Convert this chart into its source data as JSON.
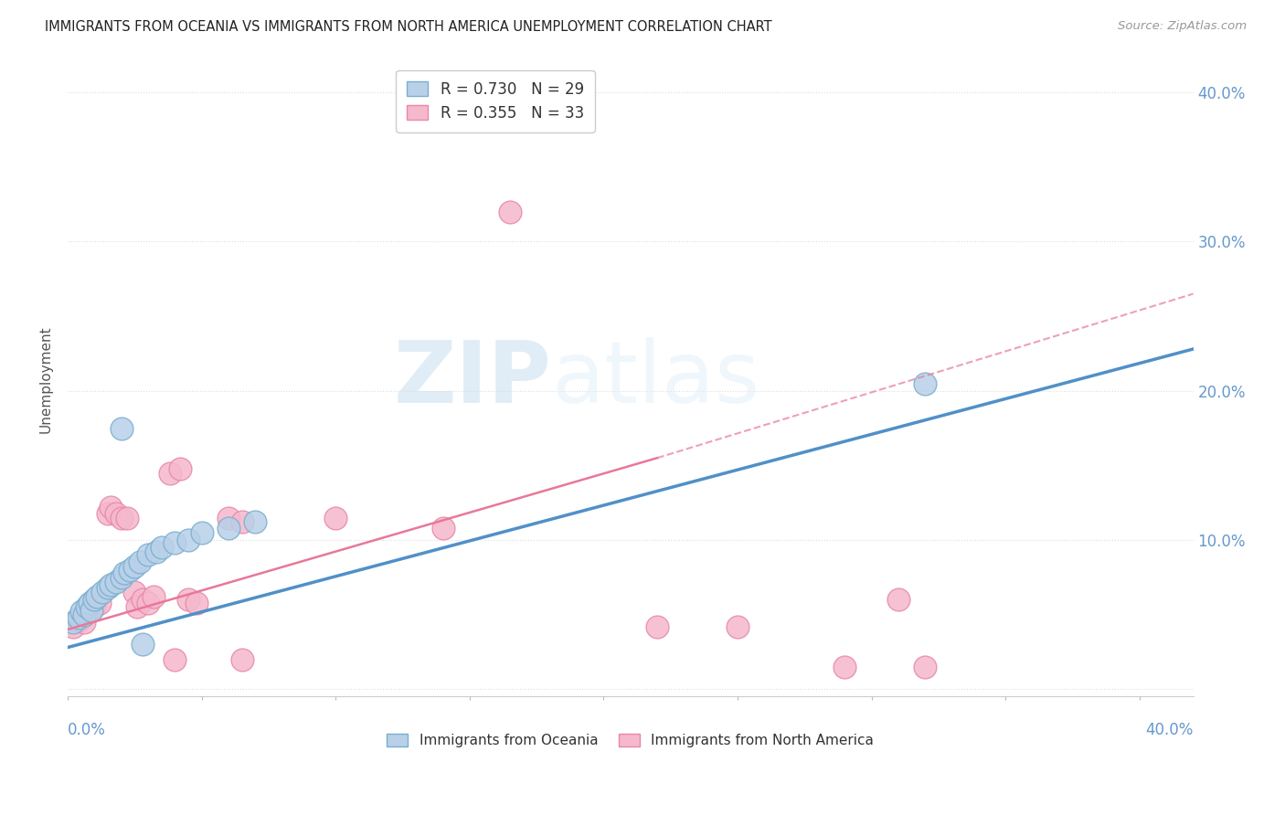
{
  "title": "IMMIGRANTS FROM OCEANIA VS IMMIGRANTS FROM NORTH AMERICA UNEMPLOYMENT CORRELATION CHART",
  "source": "Source: ZipAtlas.com",
  "ylabel": "Unemployment",
  "xlim": [
    0.0,
    0.42
  ],
  "ylim": [
    -0.005,
    0.42
  ],
  "blue_color": "#b8d0e8",
  "pink_color": "#f5b8cc",
  "blue_edge_color": "#7aaed0",
  "pink_edge_color": "#e888a8",
  "blue_line_color": "#5090c8",
  "pink_line_color": "#e87898",
  "axis_color": "#6699cc",
  "grid_color": "#dddddd",
  "blue_scatter": [
    [
      0.002,
      0.045
    ],
    [
      0.004,
      0.048
    ],
    [
      0.005,
      0.052
    ],
    [
      0.006,
      0.05
    ],
    [
      0.007,
      0.055
    ],
    [
      0.008,
      0.058
    ],
    [
      0.009,
      0.053
    ],
    [
      0.01,
      0.06
    ],
    [
      0.011,
      0.062
    ],
    [
      0.013,
      0.065
    ],
    [
      0.015,
      0.068
    ],
    [
      0.016,
      0.07
    ],
    [
      0.018,
      0.072
    ],
    [
      0.02,
      0.075
    ],
    [
      0.021,
      0.078
    ],
    [
      0.023,
      0.08
    ],
    [
      0.025,
      0.082
    ],
    [
      0.027,
      0.085
    ],
    [
      0.03,
      0.09
    ],
    [
      0.033,
      0.092
    ],
    [
      0.035,
      0.095
    ],
    [
      0.04,
      0.098
    ],
    [
      0.045,
      0.1
    ],
    [
      0.05,
      0.105
    ],
    [
      0.06,
      0.108
    ],
    [
      0.07,
      0.112
    ],
    [
      0.02,
      0.175
    ],
    [
      0.32,
      0.205
    ],
    [
      0.028,
      0.03
    ]
  ],
  "pink_scatter": [
    [
      0.002,
      0.042
    ],
    [
      0.004,
      0.046
    ],
    [
      0.005,
      0.048
    ],
    [
      0.006,
      0.045
    ],
    [
      0.008,
      0.052
    ],
    [
      0.01,
      0.055
    ],
    [
      0.012,
      0.058
    ],
    [
      0.015,
      0.118
    ],
    [
      0.016,
      0.122
    ],
    [
      0.018,
      0.118
    ],
    [
      0.02,
      0.115
    ],
    [
      0.022,
      0.115
    ],
    [
      0.025,
      0.065
    ],
    [
      0.026,
      0.055
    ],
    [
      0.028,
      0.06
    ],
    [
      0.03,
      0.058
    ],
    [
      0.032,
      0.062
    ],
    [
      0.038,
      0.145
    ],
    [
      0.042,
      0.148
    ],
    [
      0.045,
      0.06
    ],
    [
      0.048,
      0.058
    ],
    [
      0.06,
      0.115
    ],
    [
      0.065,
      0.112
    ],
    [
      0.1,
      0.115
    ],
    [
      0.14,
      0.108
    ],
    [
      0.165,
      0.32
    ],
    [
      0.22,
      0.042
    ],
    [
      0.25,
      0.042
    ],
    [
      0.29,
      0.015
    ],
    [
      0.32,
      0.015
    ],
    [
      0.31,
      0.06
    ],
    [
      0.04,
      0.02
    ],
    [
      0.065,
      0.02
    ]
  ],
  "blue_line": {
    "x0": 0.0,
    "x1": 0.42,
    "y0": 0.028,
    "y1": 0.228
  },
  "pink_line_solid": {
    "x0": 0.0,
    "x1": 0.22,
    "y0": 0.04,
    "y1": 0.155
  },
  "pink_line_dashed": {
    "x0": 0.22,
    "x1": 0.42,
    "y0": 0.155,
    "y1": 0.265
  },
  "watermark_zip": "ZIP",
  "watermark_atlas": "atlas",
  "background_color": "#ffffff"
}
